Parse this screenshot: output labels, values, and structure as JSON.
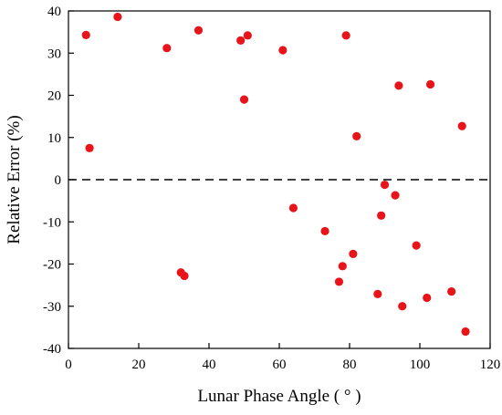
{
  "chart_data": {
    "type": "scatter",
    "title": "",
    "xlabel": "Lunar Phase Angle ( ° )",
    "ylabel": "Relative Error (%)",
    "xlim": [
      0,
      120
    ],
    "ylim": [
      -40,
      40
    ],
    "xticks": [
      0,
      20,
      40,
      60,
      80,
      100,
      120
    ],
    "yticks": [
      -40,
      -30,
      -20,
      -10,
      0,
      10,
      20,
      30,
      40
    ],
    "grid": false,
    "legend": "none",
    "reference_line": {
      "y": 0,
      "style": "dashed",
      "color": "#000000"
    },
    "marker_color": "#e8141a",
    "series": [
      {
        "points": [
          {
            "x": 5,
            "y": 34.3
          },
          {
            "x": 6,
            "y": 7.5
          },
          {
            "x": 14,
            "y": 38.6
          },
          {
            "x": 28,
            "y": 31.2
          },
          {
            "x": 32,
            "y": -22.0
          },
          {
            "x": 33,
            "y": -22.8
          },
          {
            "x": 37,
            "y": 35.4
          },
          {
            "x": 49,
            "y": 33.0
          },
          {
            "x": 50,
            "y": 19.0
          },
          {
            "x": 51,
            "y": 34.2
          },
          {
            "x": 61,
            "y": 30.7
          },
          {
            "x": 64,
            "y": -6.7
          },
          {
            "x": 73,
            "y": -12.2
          },
          {
            "x": 77,
            "y": -24.2
          },
          {
            "x": 78,
            "y": -20.5
          },
          {
            "x": 79,
            "y": 34.2
          },
          {
            "x": 81,
            "y": -17.6
          },
          {
            "x": 82,
            "y": 10.3
          },
          {
            "x": 88,
            "y": -27.1
          },
          {
            "x": 89,
            "y": -8.5
          },
          {
            "x": 90,
            "y": -1.2
          },
          {
            "x": 93,
            "y": -3.7
          },
          {
            "x": 94,
            "y": 22.3
          },
          {
            "x": 95,
            "y": -30.0
          },
          {
            "x": 99,
            "y": -15.6
          },
          {
            "x": 102,
            "y": -28.0
          },
          {
            "x": 103,
            "y": 22.6
          },
          {
            "x": 109,
            "y": -26.5
          },
          {
            "x": 112,
            "y": 12.7
          },
          {
            "x": 113,
            "y": -36.0
          }
        ]
      }
    ]
  }
}
